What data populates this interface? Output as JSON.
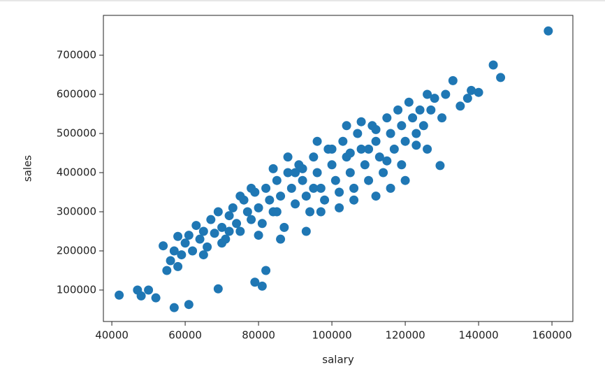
{
  "chart_data": {
    "type": "scatter",
    "x_label": "salary",
    "y_label": "sales",
    "color": "#1f77b4",
    "xlim": [
      37700,
      165700
    ],
    "ylim": [
      19600,
      801800
    ],
    "xticks": [
      40000,
      60000,
      80000,
      100000,
      120000,
      140000,
      160000
    ],
    "yticks": [
      100000,
      200000,
      300000,
      400000,
      500000,
      600000,
      700000
    ],
    "x": [
      42000,
      57000,
      61000,
      69000,
      79000,
      81000,
      82000,
      159000,
      144000,
      146000,
      129500,
      133000,
      140000,
      120000,
      116000,
      54000,
      58000,
      47000,
      48000,
      50000,
      52000,
      55000,
      56000,
      57000,
      58000,
      59000,
      60000,
      61000,
      62000,
      63000,
      64000,
      65000,
      66000,
      67000,
      68000,
      69000,
      70000,
      71000,
      72000,
      73000,
      74000,
      75000,
      76000,
      77000,
      78000,
      79000,
      80000,
      81000,
      82000,
      83000,
      84000,
      85000,
      86000,
      87000,
      88000,
      89000,
      90000,
      91000,
      92000,
      93000,
      94000,
      95000,
      96000,
      97000,
      98000,
      99000,
      100000,
      101000,
      102000,
      103000,
      104000,
      105000,
      106000,
      107000,
      108000,
      109000,
      110000,
      111000,
      112000,
      113000,
      114000,
      115000,
      116000,
      117000,
      118000,
      119000,
      120000,
      121000,
      122000,
      123000,
      124000,
      125000,
      126000,
      127000,
      128000,
      130000,
      131000,
      135000,
      137000,
      138000,
      75000,
      78000,
      85000,
      90000,
      95000,
      100000,
      105000,
      110000,
      115000,
      84000,
      88000,
      92000,
      96000,
      104000,
      108000,
      112000,
      65000,
      70000,
      72000,
      80000,
      86000,
      93000,
      97000,
      102000,
      106000,
      112000,
      119000,
      123000,
      126000
    ],
    "y": [
      87000,
      55000,
      63000,
      103000,
      120000,
      110000,
      150000,
      762000,
      675000,
      643000,
      418000,
      635000,
      605000,
      380000,
      360000,
      213000,
      237000,
      100000,
      85000,
      100000,
      80000,
      150000,
      175000,
      200000,
      160000,
      190000,
      220000,
      240000,
      200000,
      265000,
      230000,
      250000,
      210000,
      280000,
      245000,
      300000,
      260000,
      230000,
      290000,
      310000,
      270000,
      250000,
      330000,
      300000,
      280000,
      350000,
      310000,
      270000,
      360000,
      330000,
      300000,
      380000,
      340000,
      260000,
      400000,
      360000,
      320000,
      420000,
      380000,
      340000,
      300000,
      440000,
      400000,
      360000,
      330000,
      460000,
      420000,
      380000,
      350000,
      480000,
      440000,
      400000,
      360000,
      500000,
      460000,
      420000,
      380000,
      520000,
      480000,
      440000,
      400000,
      540000,
      500000,
      460000,
      560000,
      520000,
      480000,
      580000,
      540000,
      500000,
      560000,
      520000,
      600000,
      560000,
      590000,
      540000,
      600000,
      570000,
      590000,
      610000,
      340000,
      360000,
      300000,
      400000,
      360000,
      460000,
      450000,
      460000,
      430000,
      410000,
      440000,
      410000,
      480000,
      520000,
      530000,
      510000,
      190000,
      220000,
      250000,
      240000,
      230000,
      250000,
      300000,
      310000,
      330000,
      340000,
      420000,
      470000,
      460000
    ]
  }
}
